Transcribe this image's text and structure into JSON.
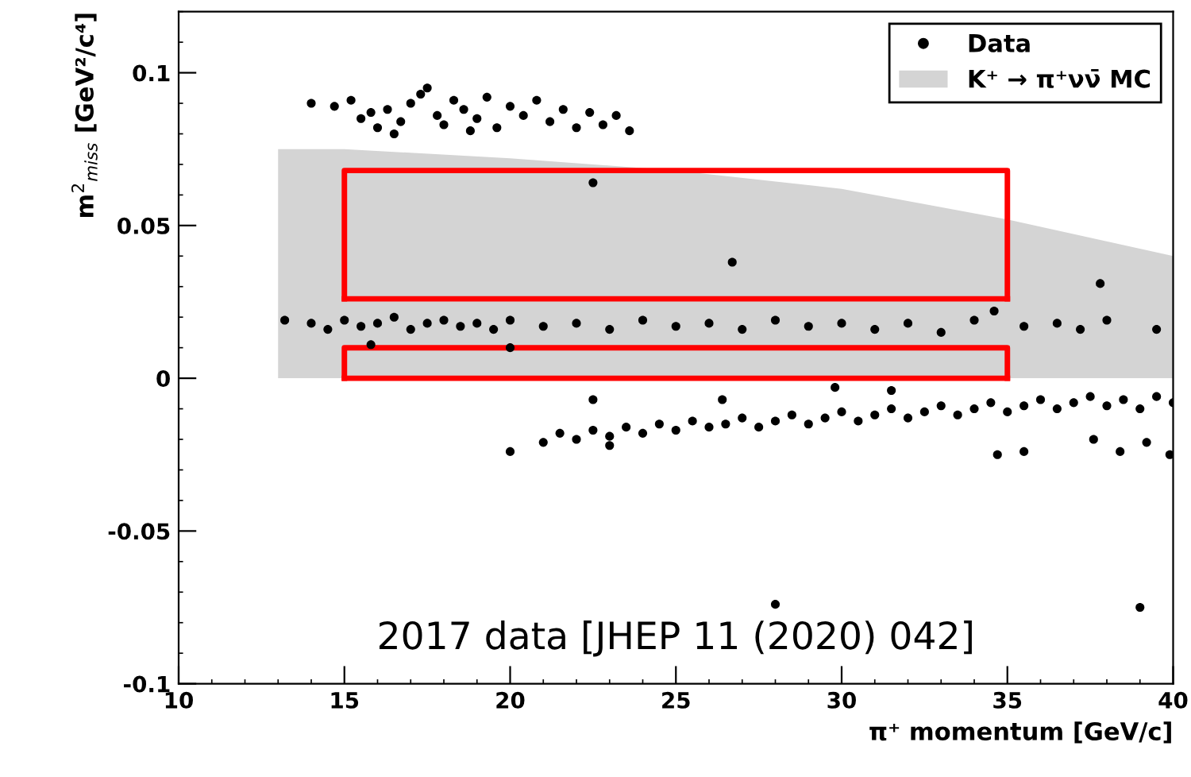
{
  "chart_data": {
    "type": "scatter",
    "xlabel": "π⁺ momentum [GeV/c]",
    "ylabel": "m$^{2}$$_{miss}$ [GeV²/c⁴]",
    "xlim": [
      10,
      40
    ],
    "xticks": [
      10,
      15,
      20,
      25,
      30,
      35,
      40
    ],
    "ylim": [
      -0.1,
      0.12
    ],
    "yticks": [
      -0.1,
      -0.05,
      0,
      0.05,
      0.1
    ],
    "grid": false,
    "legend": "top right",
    "annotations": [
      "2017 data [JHEP 11 (2020) 042]"
    ],
    "series": [
      {
        "name": "K⁺ → π⁺νν̄ MC",
        "type": "area",
        "color": "#d4d4d4",
        "x": [
          13,
          15,
          20,
          25,
          30,
          35,
          40
        ],
        "values": [
          0.075,
          0.075,
          0.072,
          0.068,
          0.062,
          0.052,
          0.04
        ]
      },
      {
        "type": "line",
        "marker": "none",
        "color": "#ff0000",
        "x": [
          15,
          15,
          35,
          35
        ],
        "values": [
          0.026,
          0.068,
          0.068,
          0.026
        ]
      },
      {
        "type": "line",
        "marker": "none",
        "color": "#ff0000",
        "x": [
          15,
          35
        ],
        "values": [
          0.026,
          0.026
        ]
      },
      {
        "type": "line",
        "marker": "none",
        "color": "#ff0000",
        "x": [
          15,
          15,
          35,
          35
        ],
        "values": [
          0,
          0.01,
          0.01,
          0
        ]
      },
      {
        "type": "line",
        "marker": "none",
        "color": "#ff0000",
        "x": [
          15,
          35
        ],
        "values": [
          0,
          0
        ]
      },
      {
        "name": "Data",
        "marker": "circle",
        "color": "#000000",
        "x": [
          14.0,
          14.7,
          15.2,
          15.5,
          15.8,
          16.0,
          16.3,
          16.7,
          17.0,
          17.3,
          17.5,
          17.8,
          18.0,
          18.3,
          18.6,
          19.0,
          19.3,
          19.6,
          20.0,
          20.4,
          20.8,
          21.2,
          21.6,
          22.0,
          22.4,
          22.8,
          23.2,
          23.6,
          16.5,
          18.8,
          13.2,
          14.0,
          14.5,
          15.0,
          15.5,
          16.0,
          16.5,
          17.0,
          17.5,
          18.0,
          18.5,
          19.0,
          19.5,
          20.0,
          21.0,
          22.0,
          23.0,
          24.0,
          25.0,
          26.0,
          27.0,
          28.0,
          29.0,
          30.0,
          31.0,
          32.0,
          33.0,
          34.0,
          35.5,
          36.5,
          37.2,
          38.0,
          39.5,
          15.8,
          20.0,
          22.5,
          26.7,
          37.8,
          34.6,
          20.0,
          21.0,
          21.5,
          22.0,
          22.5,
          23.0,
          23.5,
          24.0,
          24.5,
          25.0,
          25.5,
          26.0,
          26.5,
          27.0,
          27.5,
          28.0,
          28.5,
          29.0,
          29.5,
          30.0,
          30.5,
          31.0,
          31.5,
          32.0,
          32.5,
          33.0,
          33.5,
          34.0,
          34.5,
          35.0,
          35.5,
          36.0,
          36.5,
          37.0,
          37.5,
          38.0,
          38.5,
          39.0,
          39.5,
          40.0,
          22.5,
          26.4,
          28.0,
          39.0,
          34.7,
          35.5,
          37.6,
          38.4,
          39.2,
          39.9,
          29.8,
          31.5,
          23.0
        ],
        "values": [
          0.09,
          0.089,
          0.091,
          0.085,
          0.087,
          0.082,
          0.088,
          0.084,
          0.09,
          0.093,
          0.095,
          0.086,
          0.083,
          0.091,
          0.088,
          0.085,
          0.092,
          0.082,
          0.089,
          0.086,
          0.091,
          0.084,
          0.088,
          0.082,
          0.087,
          0.083,
          0.086,
          0.081,
          0.08,
          0.081,
          0.019,
          0.018,
          0.016,
          0.019,
          0.017,
          0.018,
          0.02,
          0.016,
          0.018,
          0.019,
          0.017,
          0.018,
          0.016,
          0.019,
          0.017,
          0.018,
          0.016,
          0.019,
          0.017,
          0.018,
          0.016,
          0.019,
          0.017,
          0.018,
          0.016,
          0.018,
          0.015,
          0.019,
          0.017,
          0.018,
          0.016,
          0.019,
          0.016,
          0.011,
          0.01,
          0.064,
          0.038,
          0.031,
          0.022,
          -0.024,
          -0.021,
          -0.018,
          -0.02,
          -0.017,
          -0.019,
          -0.016,
          -0.018,
          -0.015,
          -0.017,
          -0.014,
          -0.016,
          -0.015,
          -0.013,
          -0.016,
          -0.014,
          -0.012,
          -0.015,
          -0.013,
          -0.011,
          -0.014,
          -0.012,
          -0.01,
          -0.013,
          -0.011,
          -0.009,
          -0.012,
          -0.01,
          -0.008,
          -0.011,
          -0.009,
          -0.007,
          -0.01,
          -0.008,
          -0.006,
          -0.009,
          -0.007,
          -0.01,
          -0.006,
          -0.008,
          -0.007,
          -0.007,
          -0.074,
          -0.075,
          -0.025,
          -0.024,
          -0.02,
          -0.024,
          -0.021,
          -0.025,
          -0.003,
          -0.004,
          -0.022
        ]
      }
    ]
  }
}
